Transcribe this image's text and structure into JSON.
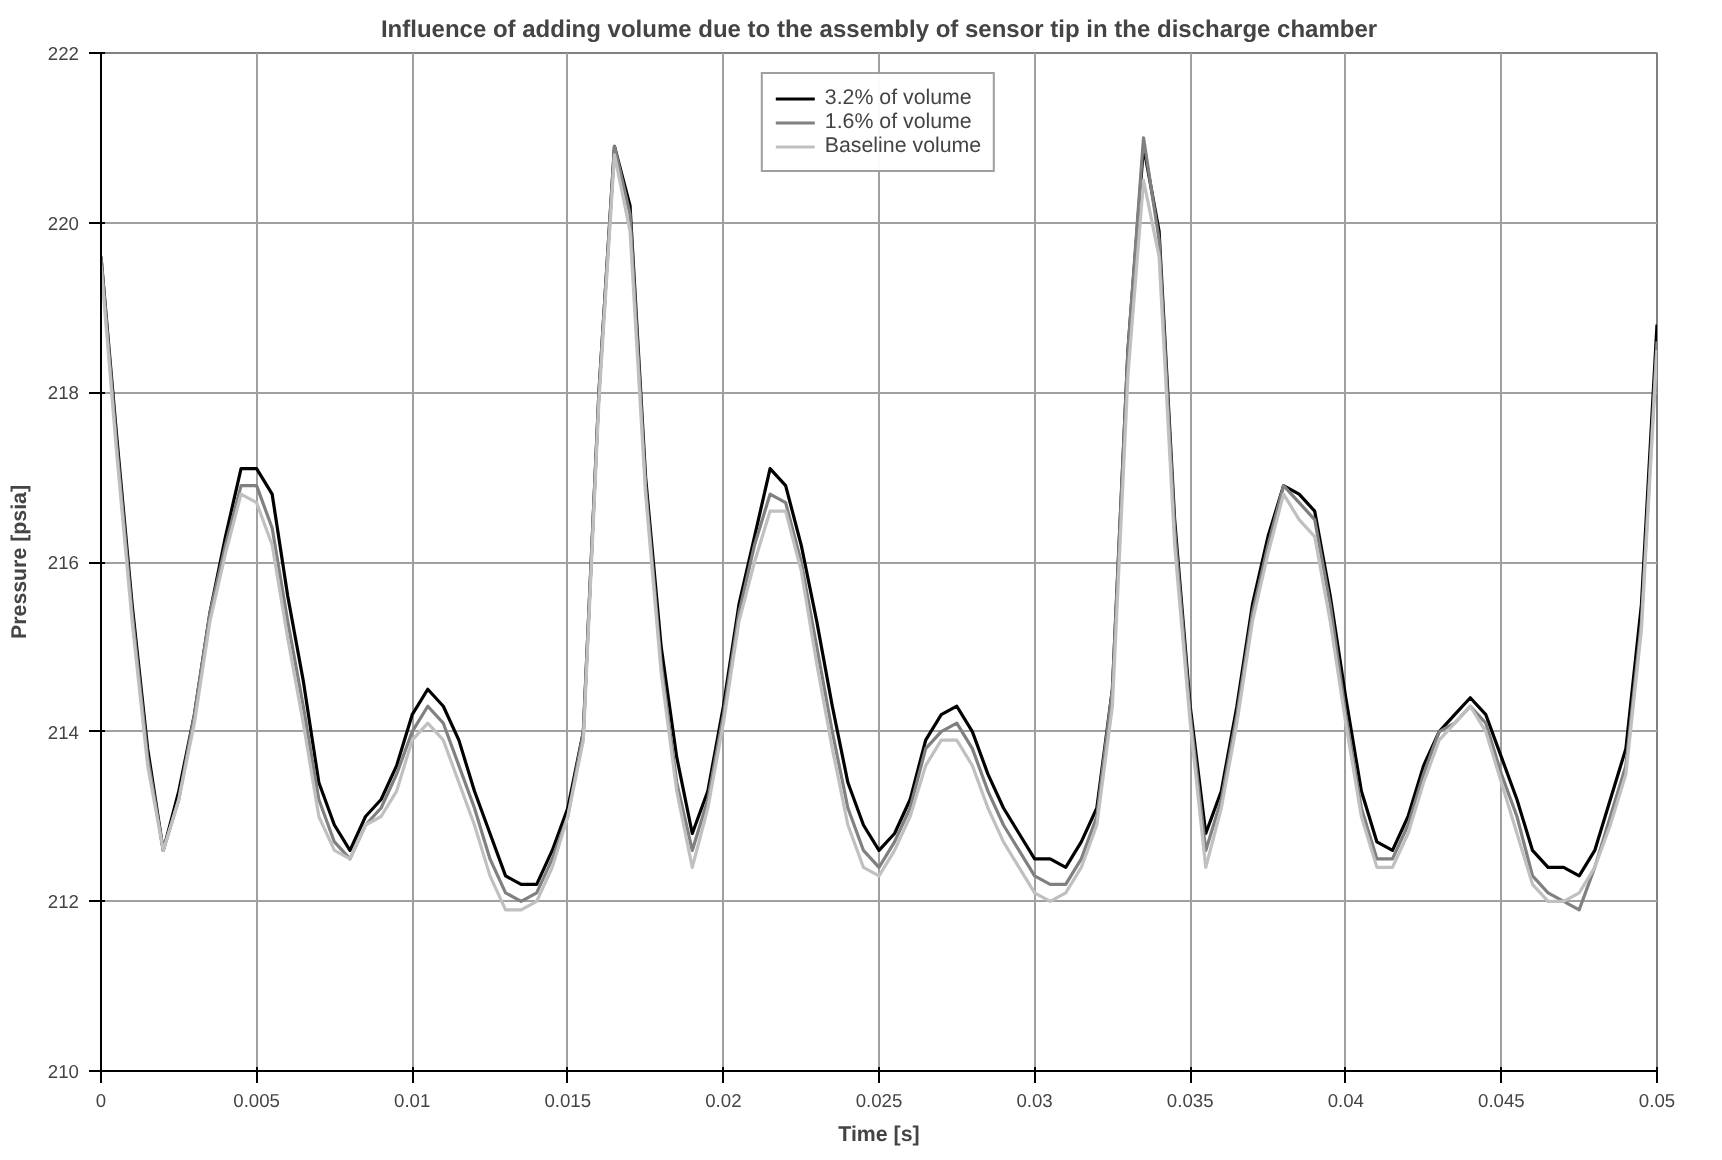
{
  "chart_data": {
    "type": "line",
    "title": "Influence of adding volume due to the assembly of sensor tip in the discharge chamber",
    "xlabel": "Time [s]",
    "ylabel": "Pressure [psia]",
    "x": [
      0,
      0.0005,
      0.001,
      0.0015,
      0.002,
      0.0025,
      0.003,
      0.0035,
      0.004,
      0.0045,
      0.005,
      0.0055,
      0.006,
      0.0065,
      0.007,
      0.0075,
      0.008,
      0.0085,
      0.009,
      0.0095,
      0.01,
      0.0105,
      0.011,
      0.0115,
      0.012,
      0.0125,
      0.013,
      0.0135,
      0.014,
      0.0145,
      0.015,
      0.0155,
      0.016,
      0.0165,
      0.017,
      0.0175,
      0.018,
      0.0185,
      0.019,
      0.0195,
      0.02,
      0.0205,
      0.021,
      0.0215,
      0.022,
      0.0225,
      0.023,
      0.0235,
      0.024,
      0.0245,
      0.025,
      0.0255,
      0.026,
      0.0265,
      0.027,
      0.0275,
      0.028,
      0.0285,
      0.029,
      0.0295,
      0.03,
      0.0305,
      0.031,
      0.0315,
      0.032,
      0.0325,
      0.033,
      0.0335,
      0.034,
      0.0345,
      0.035,
      0.0355,
      0.036,
      0.0365,
      0.037,
      0.0375,
      0.038,
      0.0385,
      0.039,
      0.0395,
      0.04,
      0.0405,
      0.041,
      0.0415,
      0.042,
      0.0425,
      0.043,
      0.0435,
      0.044,
      0.0445,
      0.045,
      0.0455,
      0.046,
      0.0465,
      0.047,
      0.0475,
      0.048,
      0.0485,
      0.049,
      0.0495,
      0.05
    ],
    "series": [
      {
        "name": "3.2% of volume",
        "color": "#000000",
        "values": [
          219.6,
          217.5,
          215.5,
          213.8,
          212.6,
          213.3,
          214.2,
          215.4,
          216.3,
          217.1,
          217.1,
          216.8,
          215.6,
          214.6,
          213.4,
          212.9,
          212.6,
          213.0,
          213.2,
          213.6,
          214.2,
          214.5,
          214.3,
          213.9,
          213.3,
          212.8,
          212.3,
          212.2,
          212.2,
          212.6,
          213.1,
          214.0,
          218.0,
          220.9,
          220.2,
          217.0,
          215.0,
          213.7,
          212.8,
          213.3,
          214.3,
          215.5,
          216.3,
          217.1,
          216.9,
          216.2,
          215.3,
          214.3,
          213.4,
          212.9,
          212.6,
          212.8,
          213.2,
          213.9,
          214.2,
          214.3,
          214.0,
          213.5,
          213.1,
          212.8,
          212.5,
          212.5,
          212.4,
          212.7,
          213.1,
          214.5,
          218.5,
          220.9,
          219.9,
          216.5,
          214.3,
          212.8,
          213.3,
          214.3,
          215.5,
          216.3,
          216.9,
          216.8,
          216.6,
          215.6,
          214.4,
          213.3,
          212.7,
          212.6,
          213.0,
          213.6,
          214.0,
          214.2,
          214.4,
          214.2,
          213.7,
          213.2,
          212.6,
          212.4,
          212.4,
          212.3,
          212.6,
          213.2,
          213.8,
          215.5,
          218.8
        ]
      },
      {
        "name": "1.6% of volume",
        "color": "#808080",
        "values": [
          219.6,
          217.4,
          215.4,
          213.7,
          212.6,
          213.2,
          214.2,
          215.4,
          216.2,
          216.9,
          216.9,
          216.4,
          215.3,
          214.3,
          213.2,
          212.7,
          212.5,
          212.9,
          213.1,
          213.5,
          214.0,
          214.3,
          214.1,
          213.6,
          213.1,
          212.5,
          212.1,
          212.0,
          212.1,
          212.5,
          213.0,
          214.0,
          218.0,
          220.9,
          220.1,
          216.9,
          214.8,
          213.4,
          212.6,
          213.2,
          214.2,
          215.4,
          216.2,
          216.8,
          216.7,
          216.0,
          215.0,
          214.0,
          213.1,
          212.6,
          212.4,
          212.7,
          213.1,
          213.8,
          214.0,
          214.1,
          213.8,
          213.3,
          212.9,
          212.6,
          212.3,
          212.2,
          212.2,
          212.5,
          213.0,
          214.5,
          218.5,
          221.0,
          219.8,
          216.4,
          214.2,
          212.6,
          213.2,
          214.2,
          215.4,
          216.2,
          216.9,
          216.7,
          216.5,
          215.5,
          214.2,
          213.1,
          212.5,
          212.5,
          212.9,
          213.5,
          214.0,
          214.1,
          214.3,
          214.1,
          213.5,
          213.0,
          212.3,
          212.1,
          212.0,
          211.9,
          212.4,
          213.0,
          213.6,
          215.3,
          218.6
        ]
      },
      {
        "name": "Baseline volume",
        "color": "#c0c0c0",
        "values": [
          219.5,
          217.3,
          215.3,
          213.6,
          212.6,
          213.2,
          214.1,
          215.3,
          216.1,
          216.8,
          216.7,
          216.2,
          215.1,
          214.1,
          213.0,
          212.6,
          212.5,
          212.9,
          213.0,
          213.3,
          213.9,
          214.1,
          213.9,
          213.4,
          212.9,
          212.3,
          211.9,
          211.9,
          212.0,
          212.4,
          213.0,
          213.9,
          217.9,
          220.8,
          219.9,
          216.8,
          214.7,
          213.3,
          212.4,
          213.1,
          214.1,
          215.3,
          216.0,
          216.6,
          216.6,
          215.9,
          214.8,
          213.8,
          212.9,
          212.4,
          212.3,
          212.6,
          213.0,
          213.6,
          213.9,
          213.9,
          213.6,
          213.1,
          212.7,
          212.4,
          212.1,
          212.0,
          212.1,
          212.4,
          212.9,
          214.3,
          218.2,
          220.5,
          219.6,
          216.2,
          214.1,
          212.4,
          213.1,
          214.1,
          215.3,
          216.1,
          216.8,
          216.5,
          216.3,
          215.3,
          214.1,
          213.0,
          212.4,
          212.4,
          212.8,
          213.4,
          213.9,
          214.1,
          214.3,
          214.0,
          213.4,
          212.8,
          212.2,
          212.0,
          212.0,
          212.1,
          212.4,
          212.9,
          213.5,
          215.2,
          218.5
        ]
      }
    ],
    "xlim": [
      0,
      0.05
    ],
    "ylim": [
      210,
      222
    ],
    "xticks": [
      0,
      0.005,
      0.01,
      0.015,
      0.02,
      0.025,
      0.03,
      0.035,
      0.04,
      0.045,
      0.05
    ],
    "yticks": [
      210,
      212,
      214,
      216,
      218,
      220,
      222
    ],
    "grid": true,
    "legend": "top center",
    "line_style": "solid",
    "marker": "none"
  }
}
